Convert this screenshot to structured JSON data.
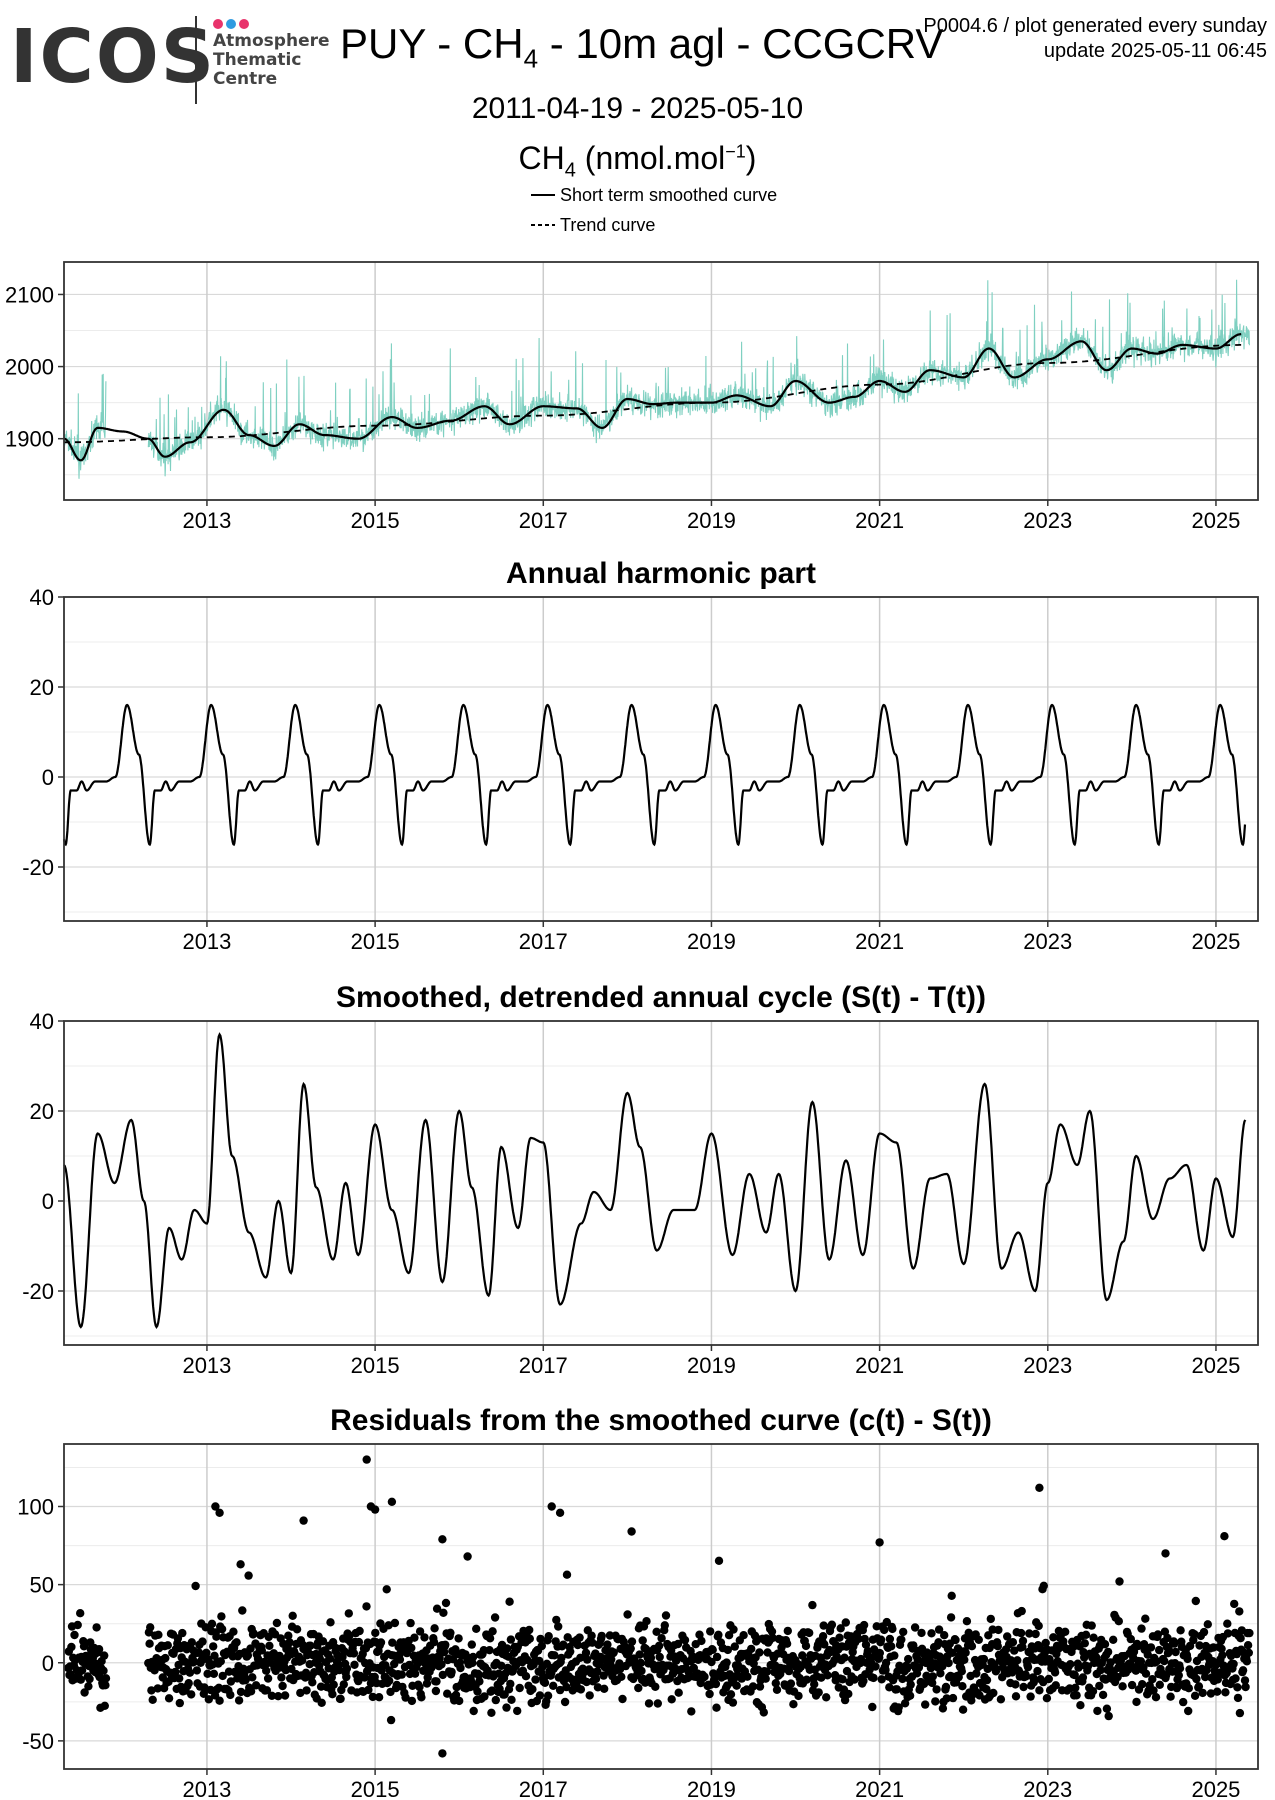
{
  "header": {
    "logo_text": "ICOS",
    "logo_sub": [
      "Atmosphere",
      "Thematic",
      "Centre"
    ],
    "logo_dot_colors": [
      "#e8336b",
      "#2f9be0",
      "#e8336b"
    ],
    "title_pre": "PUY - CH",
    "title_sub": "4",
    "title_post": " - 10m agl - CCGCRV",
    "meta_line1": "P0004.6 / plot generated every sunday",
    "meta_line2": "update  2025-05-11 06:45",
    "date_range": "2011-04-19 - 2025-05-10",
    "unit_pre": "CH",
    "unit_sub": "4",
    "unit_mid": " (nmol.mol",
    "unit_sup": "−1",
    "unit_post": ")",
    "legend": [
      "Short term smoothed curve",
      "Trend curve"
    ]
  },
  "colors": {
    "raw": "#7fd0c1",
    "line": "#000000",
    "grid": "#d9d9d9",
    "grid_major": "#cccccc"
  },
  "chart_data": [
    {
      "type": "line",
      "title": "",
      "xlim": [
        2011.3,
        2025.5
      ],
      "ylim": [
        1815,
        2145
      ],
      "x_ticks": [
        2013,
        2015,
        2017,
        2019,
        2021,
        2023,
        2025
      ],
      "y_ticks": [
        1900,
        2000,
        2100
      ],
      "series": [
        {
          "name": "",
          "role": "raw",
          "trend_start": 1895,
          "trend_end": 2030,
          "noise": 28
        },
        {
          "name": "Short term smoothed curve",
          "role": "smooth",
          "x": [
            2011.3,
            2011.5,
            2011.7,
            2012.0,
            2012.3,
            2012.5,
            2012.8,
            2013.2,
            2013.5,
            2013.8,
            2014.1,
            2014.4,
            2014.8,
            2015.2,
            2015.5,
            2015.9,
            2016.3,
            2016.6,
            2017.0,
            2017.4,
            2017.7,
            2018.0,
            2018.3,
            2018.6,
            2019.0,
            2019.3,
            2019.7,
            2020.0,
            2020.4,
            2020.7,
            2021.0,
            2021.3,
            2021.6,
            2022.0,
            2022.3,
            2022.6,
            2023.0,
            2023.4,
            2023.7,
            2024.0,
            2024.3,
            2024.6,
            2025.0,
            2025.3
          ],
          "y": [
            1900,
            1870,
            1915,
            1910,
            1900,
            1875,
            1895,
            1940,
            1905,
            1890,
            1920,
            1905,
            1900,
            1930,
            1915,
            1925,
            1945,
            1920,
            1945,
            1942,
            1915,
            1955,
            1948,
            1950,
            1950,
            1960,
            1945,
            1980,
            1950,
            1958,
            1980,
            1965,
            1995,
            1985,
            2025,
            1985,
            2010,
            2035,
            1995,
            2025,
            2018,
            2030,
            2025,
            2045
          ]
        },
        {
          "name": "Trend curve",
          "role": "trend",
          "x": [
            2011.3,
            2013.0,
            2015.0,
            2017.0,
            2019.0,
            2021.0,
            2023.0,
            2025.3
          ],
          "y": [
            1895,
            1902,
            1918,
            1932,
            1950,
            1975,
            2005,
            2030
          ]
        }
      ]
    },
    {
      "type": "line",
      "title": "Annual harmonic part",
      "xlim": [
        2011.3,
        2025.5
      ],
      "ylim": [
        -32,
        40
      ],
      "x_ticks": [
        2013,
        2015,
        2017,
        2019,
        2021,
        2023,
        2025
      ],
      "y_ticks": [
        -20,
        0,
        20,
        40
      ],
      "series": [
        {
          "name": "",
          "role": "harmonic",
          "cycle_phase": [
            0.0,
            0.14,
            0.27,
            0.33,
            0.4,
            0.46,
            0.52,
            0.62,
            0.75,
            0.86,
            1.0
          ],
          "cycle_value": [
            16,
            5,
            -15,
            -3,
            -3,
            -1,
            -3,
            -1,
            -1,
            0,
            16
          ],
          "peak_year": 2012.05,
          "x_start": 2011.3,
          "x_end": 2025.35
        }
      ]
    },
    {
      "type": "line",
      "title": "Smoothed, detrended annual cycle (S(t) - T(t))",
      "xlim": [
        2011.3,
        2025.5
      ],
      "ylim": [
        -32,
        40
      ],
      "x_ticks": [
        2013,
        2015,
        2017,
        2019,
        2021,
        2023,
        2025
      ],
      "y_ticks": [
        -20,
        0,
        20,
        40
      ],
      "series": [
        {
          "name": "",
          "role": "detrended",
          "x": [
            2011.3,
            2011.5,
            2011.7,
            2011.9,
            2012.1,
            2012.25,
            2012.4,
            2012.55,
            2012.7,
            2012.85,
            2013.0,
            2013.15,
            2013.3,
            2013.5,
            2013.7,
            2013.85,
            2014.0,
            2014.15,
            2014.3,
            2014.5,
            2014.65,
            2014.8,
            2015.0,
            2015.2,
            2015.4,
            2015.6,
            2015.8,
            2016.0,
            2016.15,
            2016.35,
            2016.5,
            2016.7,
            2016.85,
            2017.0,
            2017.2,
            2017.45,
            2017.6,
            2017.8,
            2018.0,
            2018.15,
            2018.35,
            2018.55,
            2018.8,
            2019.0,
            2019.25,
            2019.45,
            2019.65,
            2019.8,
            2020.0,
            2020.2,
            2020.4,
            2020.6,
            2020.8,
            2021.0,
            2021.2,
            2021.4,
            2021.6,
            2021.8,
            2022.0,
            2022.25,
            2022.45,
            2022.65,
            2022.85,
            2023.0,
            2023.15,
            2023.35,
            2023.5,
            2023.7,
            2023.9,
            2024.05,
            2024.25,
            2024.45,
            2024.65,
            2024.85,
            2025.0,
            2025.2,
            2025.35
          ],
          "y": [
            8,
            -28,
            15,
            4,
            18,
            0,
            -28,
            -6,
            -13,
            -2,
            -5,
            37,
            10,
            -7,
            -17,
            0,
            -16,
            26,
            3,
            -13,
            4,
            -12,
            17,
            -2,
            -16,
            18,
            -18,
            20,
            3,
            -21,
            12,
            -6,
            14,
            13,
            -23,
            -5,
            2,
            -2,
            24,
            12,
            -11,
            -2,
            -2,
            15,
            -12,
            6,
            -7,
            6,
            -20,
            22,
            -13,
            9,
            -12,
            15,
            13,
            -15,
            5,
            6,
            -14,
            26,
            -15,
            -7,
            -20,
            4,
            17,
            8,
            20,
            -22,
            -9,
            10,
            -4,
            5,
            8,
            -11,
            5,
            -8,
            18
          ]
        }
      ]
    },
    {
      "type": "scatter",
      "title": "Residuals from the smoothed curve (c(t) - S(t))",
      "xlim": [
        2011.3,
        2025.5
      ],
      "ylim": [
        -68,
        140
      ],
      "x_ticks": [
        2013,
        2015,
        2017,
        2019,
        2021,
        2023,
        2025
      ],
      "y_ticks": [
        -50,
        0,
        50,
        100
      ],
      "series": [
        {
          "name": "",
          "role": "residuals",
          "gap": [
            2011.8,
            2012.3
          ],
          "spread": 18,
          "outliers": [
            [
              2013.1,
              100
            ],
            [
              2013.15,
              96
            ],
            [
              2014.15,
              91
            ],
            [
              2014.9,
              130
            ],
            [
              2014.95,
              100
            ],
            [
              2015.0,
              98
            ],
            [
              2015.2,
              103
            ],
            [
              2015.8,
              79
            ],
            [
              2015.8,
              -58
            ],
            [
              2017.1,
              100
            ],
            [
              2017.2,
              96
            ],
            [
              2018.05,
              84
            ],
            [
              2021.0,
              77
            ],
            [
              2022.9,
              112
            ],
            [
              2024.4,
              70
            ],
            [
              2025.1,
              81
            ],
            [
              2016.1,
              68
            ],
            [
              2013.4,
              63
            ]
          ]
        }
      ]
    }
  ]
}
